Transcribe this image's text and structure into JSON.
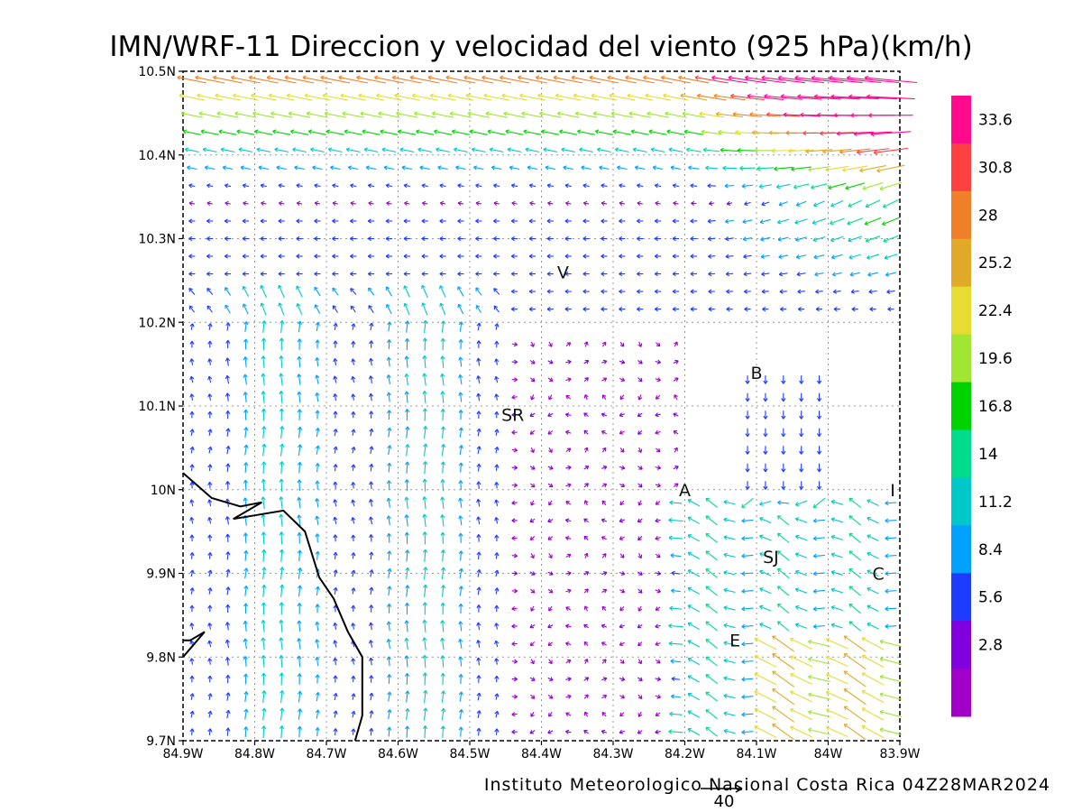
{
  "title": "IMN/WRF-11 Direccion y velocidad del viento (925 hPa)(km/h)",
  "credit": "Instituto Meteorologico Nacional Costa Rica 04Z28MAR2024",
  "reference_vector": {
    "label": "40",
    "speed_kmh": 40
  },
  "axes": {
    "x_ticks": [
      "84.9W",
      "84.8W",
      "84.7W",
      "84.6W",
      "84.5W",
      "84.4W",
      "84.3W",
      "84.2W",
      "84.1W",
      "84W",
      "83.9W"
    ],
    "y_ticks": [
      "9.7N",
      "9.8N",
      "9.9N",
      "10N",
      "10.1N",
      "10.2N",
      "10.3N",
      "10.4N",
      "10.5N"
    ],
    "lon_range": [
      -84.9,
      -83.9
    ],
    "lat_range": [
      9.7,
      10.5
    ],
    "grid": true
  },
  "colorbar": {
    "levels": [
      "33.6",
      "30.8",
      "28",
      "25.2",
      "22.4",
      "19.6",
      "16.8",
      "14",
      "11.2",
      "8.4",
      "5.6",
      "2.8"
    ],
    "colors": [
      "#ff0a8c",
      "#ff4040",
      "#f08028",
      "#e0aa28",
      "#e6dc32",
      "#a0e632",
      "#00d200",
      "#00dc8c",
      "#00c8c8",
      "#00a0ff",
      "#1e3cff",
      "#8000e0",
      "#a000c8"
    ]
  },
  "cities": [
    {
      "label": "V",
      "lon": -84.37,
      "lat": 10.26
    },
    {
      "label": "B",
      "lon": -84.1,
      "lat": 10.14
    },
    {
      "label": "SR",
      "lon": -84.44,
      "lat": 10.09
    },
    {
      "label": "A",
      "lon": -84.2,
      "lat": 10.0
    },
    {
      "label": "I",
      "lon": -83.91,
      "lat": 10.0
    },
    {
      "label": "SJ",
      "lon": -84.08,
      "lat": 9.92
    },
    {
      "label": "C",
      "lon": -83.93,
      "lat": 9.9
    },
    {
      "label": "E",
      "lon": -84.13,
      "lat": 9.82
    }
  ],
  "coastline": [
    [
      -84.9,
      10.02
    ],
    [
      -84.86,
      9.99
    ],
    [
      -84.82,
      9.98
    ],
    [
      -84.79,
      9.985
    ],
    [
      -84.83,
      9.965
    ],
    [
      -84.76,
      9.975
    ],
    [
      -84.73,
      9.95
    ],
    [
      -84.71,
      9.895
    ],
    [
      -84.69,
      9.87
    ],
    [
      -84.67,
      9.83
    ],
    [
      -84.65,
      9.8
    ],
    [
      -84.65,
      9.73
    ],
    [
      -84.66,
      9.7
    ]
  ],
  "coast2": [
    [
      -84.9,
      9.8
    ],
    [
      -84.87,
      9.83
    ],
    [
      -84.89,
      9.82
    ],
    [
      -84.9,
      9.82
    ]
  ]
}
